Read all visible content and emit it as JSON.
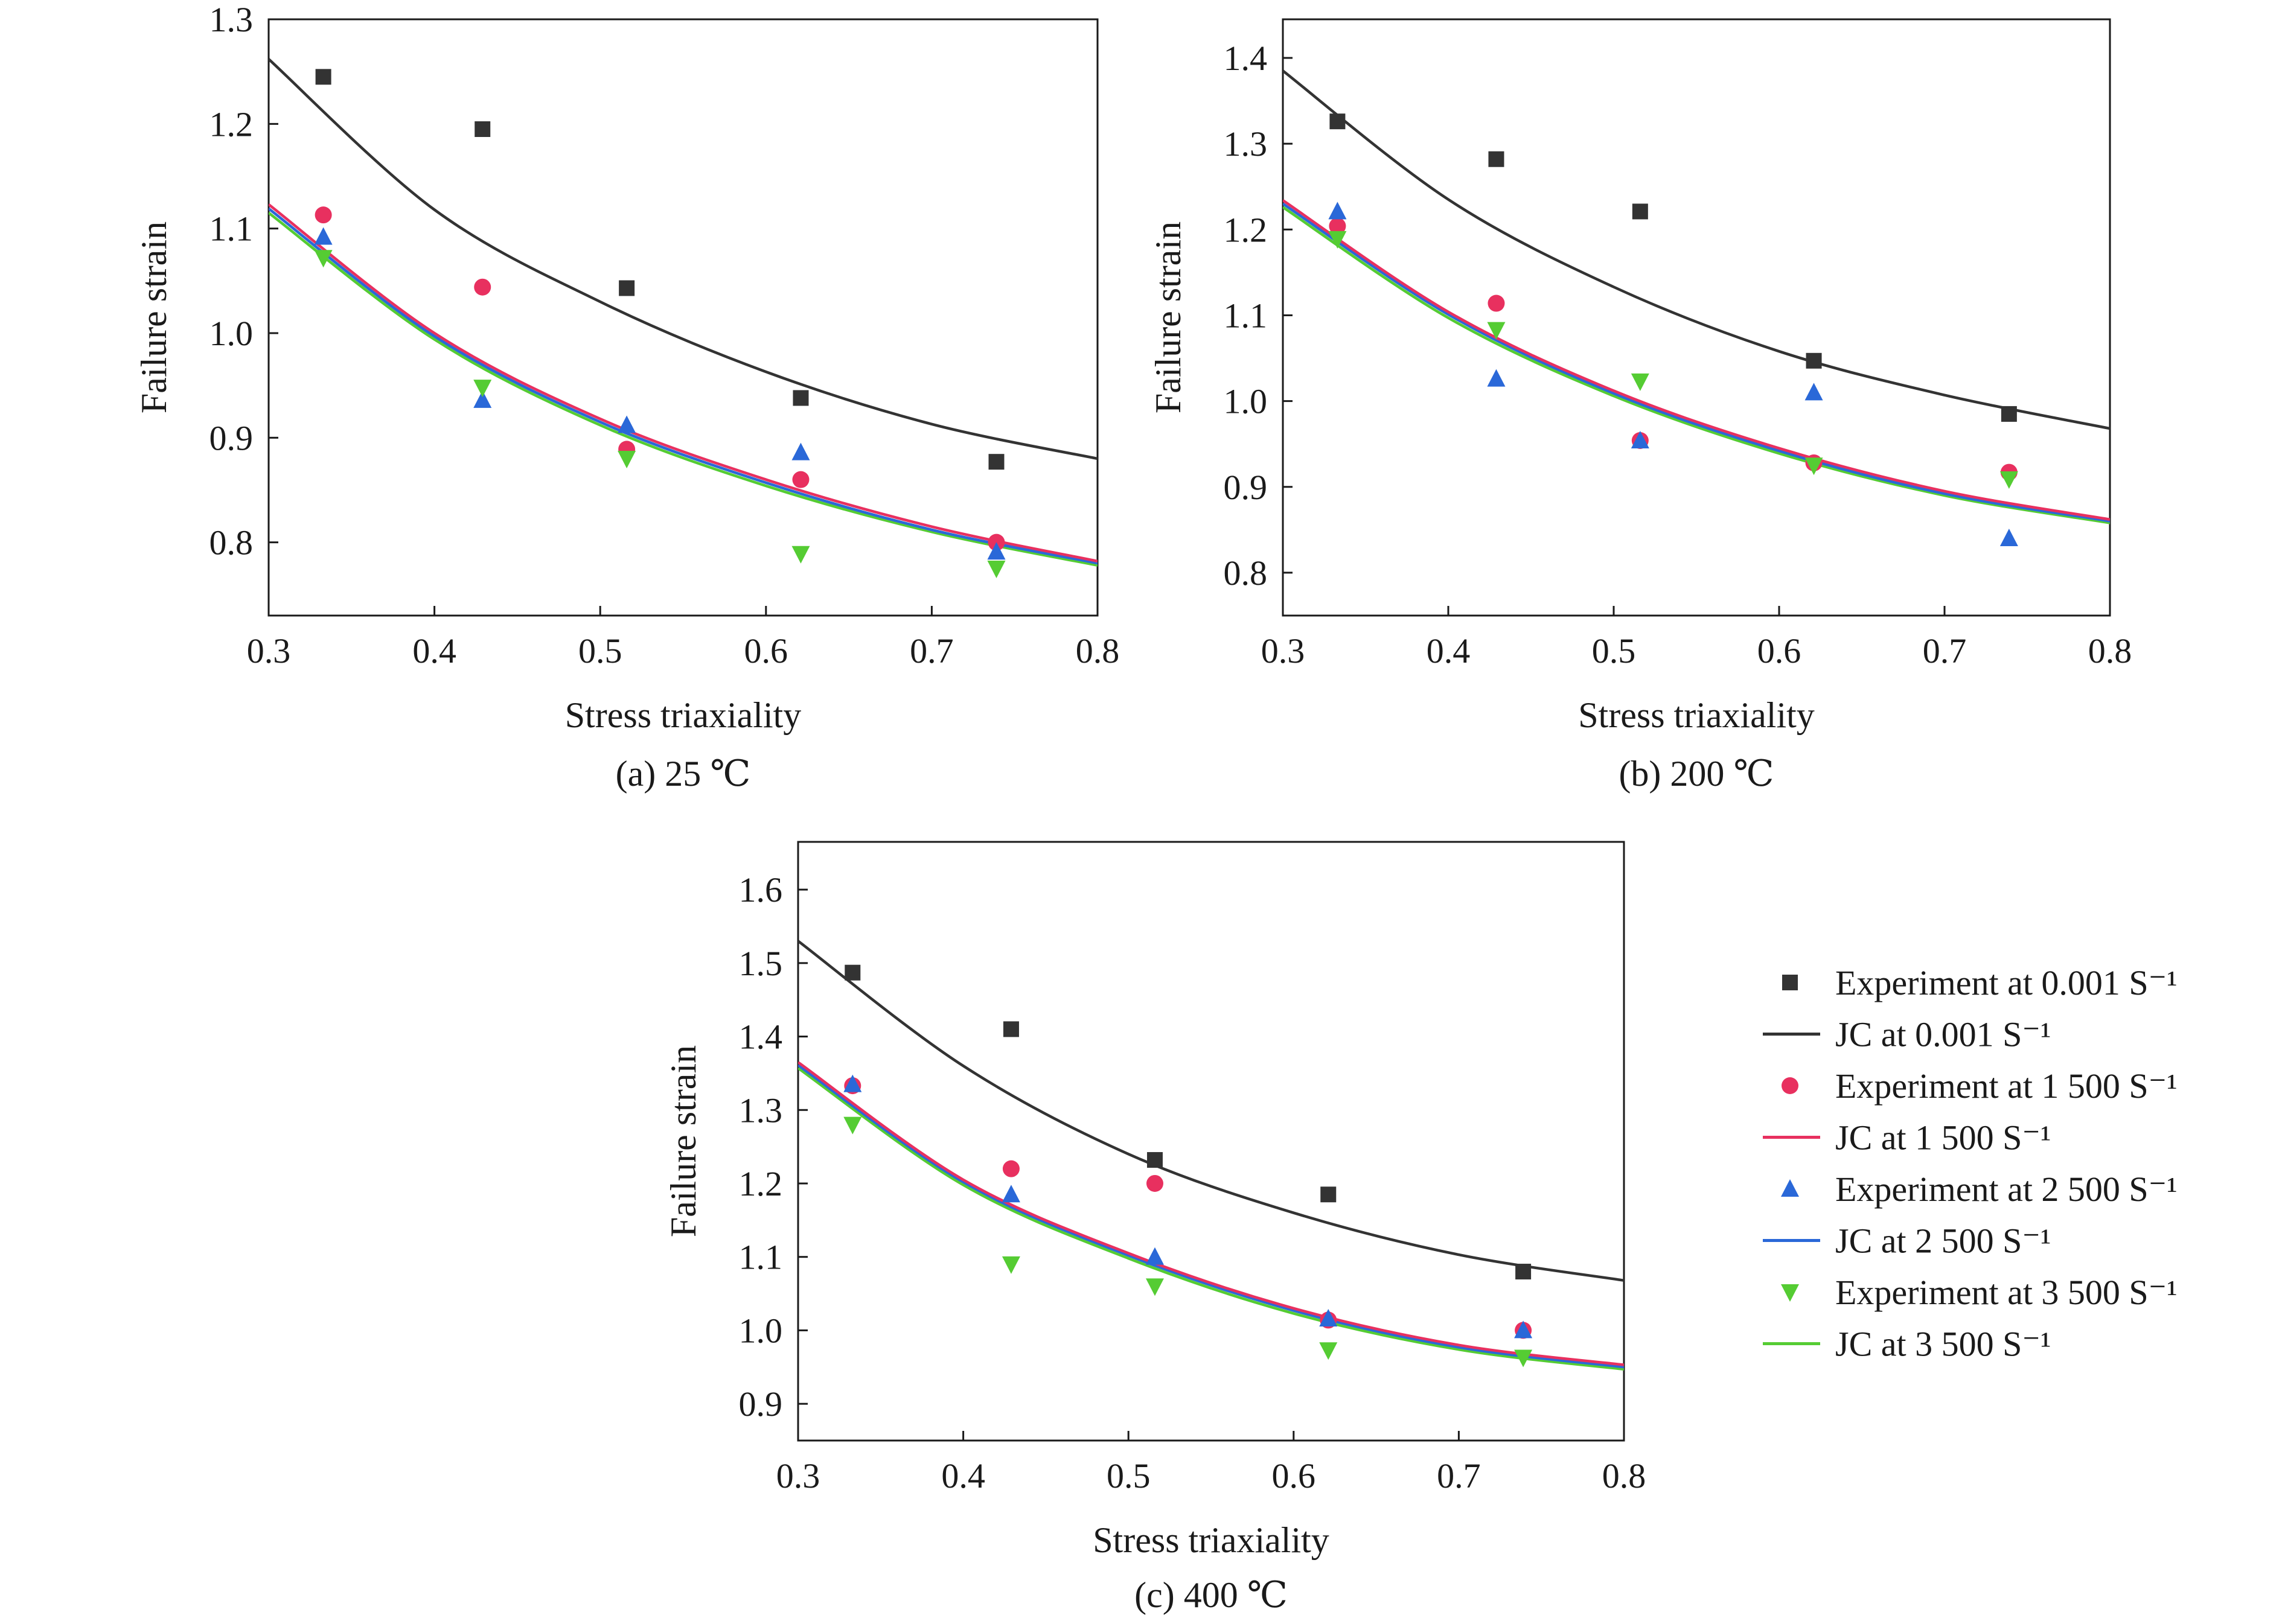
{
  "series_style": [
    {
      "name": "Experiment at 0.001 S⁻¹",
      "jc_name": "JC at 0.001 S⁻¹",
      "marker": "square",
      "color": "#333333"
    },
    {
      "name": "Experiment at 1 500 S⁻¹",
      "jc_name": "JC at 1 500 S⁻¹",
      "marker": "circle",
      "color": "#e8305f"
    },
    {
      "name": "Experiment at 2 500 S⁻¹",
      "jc_name": "JC at 2 500 S⁻¹",
      "marker": "triangle-up",
      "color": "#2a68d8"
    },
    {
      "name": "Experiment at 3 500 S⁻¹",
      "jc_name": "JC at 3 500 S⁻¹",
      "marker": "triangle-down",
      "color": "#55cc33"
    }
  ],
  "chart_data": [
    {
      "type": "scatter",
      "caption": "(a) 25 ℃",
      "xlabel": "Stress triaxiality",
      "ylabel": "Failure strain",
      "xlim": [
        0.3,
        0.8
      ],
      "ylim": [
        0.73,
        1.3
      ],
      "xticks": [
        "0.3",
        "0.4",
        "0.5",
        "0.6",
        "0.7",
        "0.8"
      ],
      "yticks": [
        "0.8",
        "0.9",
        "1.0",
        "1.1",
        "1.2",
        "1.3"
      ],
      "x": [
        0.333,
        0.429,
        0.516,
        0.621,
        0.739
      ],
      "series": [
        {
          "name": "Experiment at 0.001 S⁻¹",
          "values": [
            1.245,
            1.195,
            1.043,
            0.938,
            0.877
          ]
        },
        {
          "name": "Experiment at 1 500 S⁻¹",
          "values": [
            1.113,
            1.044,
            0.889,
            0.86,
            0.8
          ]
        },
        {
          "name": "Experiment at 2 500 S⁻¹",
          "values": [
            1.092,
            0.936,
            0.912,
            0.886,
            0.791
          ]
        },
        {
          "name": "Experiment at 3 500 S⁻¹",
          "values": [
            1.072,
            0.948,
            0.88,
            0.789,
            0.775
          ]
        }
      ],
      "fits_x": [
        0.3,
        0.4,
        0.5,
        0.6,
        0.7,
        0.8
      ],
      "fits": [
        {
          "name": "JC at 0.001 S⁻¹",
          "values": [
            1.262,
            1.118,
            1.03,
            0.963,
            0.913,
            0.88
          ]
        },
        {
          "name": "JC at 1 500 S⁻¹",
          "values": [
            1.123,
            1.0,
            0.918,
            0.86,
            0.815,
            0.782
          ]
        },
        {
          "name": "JC at 2 500 S⁻¹",
          "values": [
            1.119,
            0.997,
            0.915,
            0.857,
            0.812,
            0.78
          ]
        },
        {
          "name": "JC at 3 500 S⁻¹",
          "values": [
            1.115,
            0.994,
            0.912,
            0.854,
            0.81,
            0.778
          ]
        }
      ]
    },
    {
      "type": "scatter",
      "caption": "(b) 200 ℃",
      "xlabel": "Stress triaxiality",
      "ylabel": "Failure strain",
      "xlim": [
        0.3,
        0.8
      ],
      "ylim": [
        0.75,
        1.445
      ],
      "xticks": [
        "0.3",
        "0.4",
        "0.5",
        "0.6",
        "0.7",
        "0.8"
      ],
      "yticks": [
        "0.8",
        "0.9",
        "1.0",
        "1.1",
        "1.2",
        "1.3",
        "1.4"
      ],
      "x": [
        0.333,
        0.429,
        0.516,
        0.621,
        0.739
      ],
      "series": [
        {
          "name": "Experiment at 0.001 S⁻¹",
          "values": [
            1.326,
            1.282,
            1.221,
            1.047,
            0.985
          ]
        },
        {
          "name": "Experiment at 1 500 S⁻¹",
          "values": [
            1.204,
            1.114,
            0.954,
            0.928,
            0.917
          ]
        },
        {
          "name": "Experiment at 2 500 S⁻¹",
          "values": [
            1.221,
            1.026,
            0.954,
            1.01,
            0.84
          ]
        },
        {
          "name": "Experiment at 3 500 S⁻¹",
          "values": [
            1.189,
            1.083,
            1.023,
            0.925,
            0.909
          ]
        }
      ],
      "fits_x": [
        0.3,
        0.4,
        0.5,
        0.6,
        0.7,
        0.8
      ],
      "fits": [
        {
          "name": "JC at 0.001 S⁻¹",
          "values": [
            1.385,
            1.235,
            1.133,
            1.058,
            1.007,
            0.968
          ]
        },
        {
          "name": "JC at 1 500 S⁻¹",
          "values": [
            1.234,
            1.104,
            1.012,
            0.945,
            0.895,
            0.862
          ]
        },
        {
          "name": "JC at 2 500 S⁻¹",
          "values": [
            1.23,
            1.101,
            1.009,
            0.942,
            0.892,
            0.86
          ]
        },
        {
          "name": "JC at 3 500 S⁻¹",
          "values": [
            1.226,
            1.097,
            1.006,
            0.939,
            0.89,
            0.858
          ]
        }
      ]
    },
    {
      "type": "scatter",
      "caption": "(c) 400 ℃",
      "xlabel": "Stress triaxiality",
      "ylabel": "Failure strain",
      "xlim": [
        0.3,
        0.8
      ],
      "ylim": [
        0.85,
        1.665
      ],
      "xticks": [
        "0.3",
        "0.4",
        "0.5",
        "0.6",
        "0.7",
        "0.8"
      ],
      "yticks": [
        "0.9",
        "1.0",
        "1.1",
        "1.2",
        "1.3",
        "1.4",
        "1.5",
        "1.6"
      ],
      "x": [
        0.333,
        0.429,
        0.516,
        0.621,
        0.739
      ],
      "series": [
        {
          "name": "Experiment at 0.001 S⁻¹",
          "values": [
            1.487,
            1.41,
            1.232,
            1.185,
            1.08
          ]
        },
        {
          "name": "Experiment at 1 500 S⁻¹",
          "values": [
            1.333,
            1.22,
            1.2,
            1.014,
            1.0
          ]
        },
        {
          "name": "Experiment at 2 500 S⁻¹",
          "values": [
            1.335,
            1.185,
            1.1,
            1.016,
            1.0
          ]
        },
        {
          "name": "Experiment at 3 500 S⁻¹",
          "values": [
            1.28,
            1.09,
            1.06,
            0.973,
            0.963
          ]
        }
      ],
      "fits_x": [
        0.3,
        0.4,
        0.5,
        0.6,
        0.7,
        0.8
      ],
      "fits": [
        {
          "name": "JC at 0.001 S⁻¹",
          "values": [
            1.53,
            1.36,
            1.24,
            1.16,
            1.103,
            1.068
          ]
        },
        {
          "name": "JC at 1 500 S⁻¹",
          "values": [
            1.365,
            1.205,
            1.105,
            1.03,
            0.98,
            0.953
          ]
        },
        {
          "name": "JC at 2 500 S⁻¹",
          "values": [
            1.361,
            1.202,
            1.102,
            1.027,
            0.977,
            0.95
          ]
        },
        {
          "name": "JC at 3 500 S⁻¹",
          "values": [
            1.357,
            1.198,
            1.098,
            1.023,
            0.974,
            0.947
          ]
        }
      ]
    }
  ]
}
